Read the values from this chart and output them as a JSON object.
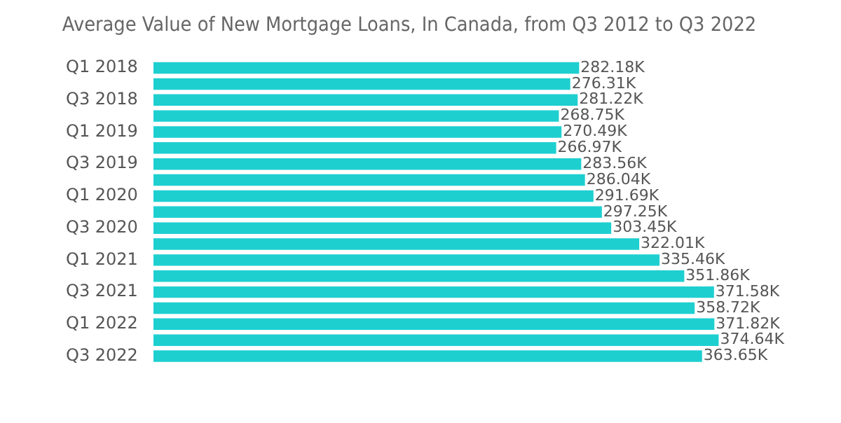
{
  "chart_data": {
    "type": "bar",
    "orientation": "horizontal",
    "title": "Average Value of New Mortgage Loans, In Canada, from Q3 2012 to Q3 2022",
    "categories": [
      "Q1 2018",
      null,
      "Q3 2018",
      null,
      "Q1 2019",
      null,
      "Q3 2019",
      null,
      "Q1 2020",
      null,
      "Q3 2020",
      null,
      "Q1 2021",
      null,
      "Q3 2021",
      null,
      "Q1 2022",
      null,
      "Q3 2022"
    ],
    "values": [
      282.18,
      276.31,
      281.22,
      268.75,
      270.49,
      266.97,
      283.56,
      286.04,
      291.69,
      297.25,
      303.45,
      322.01,
      335.46,
      351.86,
      371.58,
      358.72,
      371.82,
      374.64,
      363.65
    ],
    "value_labels": [
      "282.18K",
      "276.31K",
      "281.22K",
      "268.75K",
      "270.49K",
      "266.97K",
      "283.56K",
      "286.04K",
      "291.69K",
      "297.25K",
      "303.45K",
      "322.01K",
      "335.46K",
      "351.86K",
      "371.58K",
      "358.72K",
      "371.82K",
      "374.64K",
      "363.65K"
    ],
    "color": "#1ecfd0",
    "tick_labels": "y",
    "grid": false,
    "legend": false
  }
}
